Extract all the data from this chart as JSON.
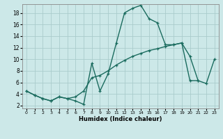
{
  "xlabel": "Humidex (Indice chaleur)",
  "bg_color": "#cce8e8",
  "grid_color": "#aacccc",
  "line_color": "#1a6b5e",
  "xlim": [
    -0.5,
    23.5
  ],
  "ylim": [
    1.5,
    19.5
  ],
  "yticks": [
    2,
    4,
    6,
    8,
    10,
    12,
    14,
    16,
    18
  ],
  "xticks": [
    0,
    1,
    2,
    3,
    4,
    5,
    6,
    7,
    8,
    9,
    10,
    11,
    12,
    13,
    14,
    15,
    16,
    17,
    18,
    19,
    20,
    21,
    22,
    23
  ],
  "upper_x": [
    0,
    1,
    2,
    3,
    4,
    5,
    6,
    7,
    8,
    9,
    10,
    11,
    12,
    13,
    14,
    15,
    16,
    17,
    18,
    19,
    20,
    21
  ],
  "upper_y": [
    4.5,
    3.8,
    3.2,
    2.8,
    3.5,
    3.2,
    2.8,
    2.2,
    9.3,
    4.5,
    7.5,
    12.8,
    18.0,
    18.8,
    19.3,
    17.0,
    16.3,
    12.5,
    12.5,
    12.8,
    10.5,
    6.3
  ],
  "lower_x": [
    0,
    1,
    2,
    3,
    4,
    5,
    6,
    7,
    8,
    9,
    10,
    11,
    12,
    13,
    14,
    15,
    16,
    17,
    18,
    19,
    20,
    21,
    22,
    23
  ],
  "lower_y": [
    4.5,
    3.8,
    3.2,
    2.8,
    3.5,
    3.2,
    3.5,
    4.5,
    6.8,
    7.2,
    8.0,
    9.0,
    9.8,
    10.5,
    11.0,
    11.5,
    11.8,
    12.2,
    12.5,
    12.8,
    6.3,
    6.3,
    5.8,
    10.0
  ]
}
